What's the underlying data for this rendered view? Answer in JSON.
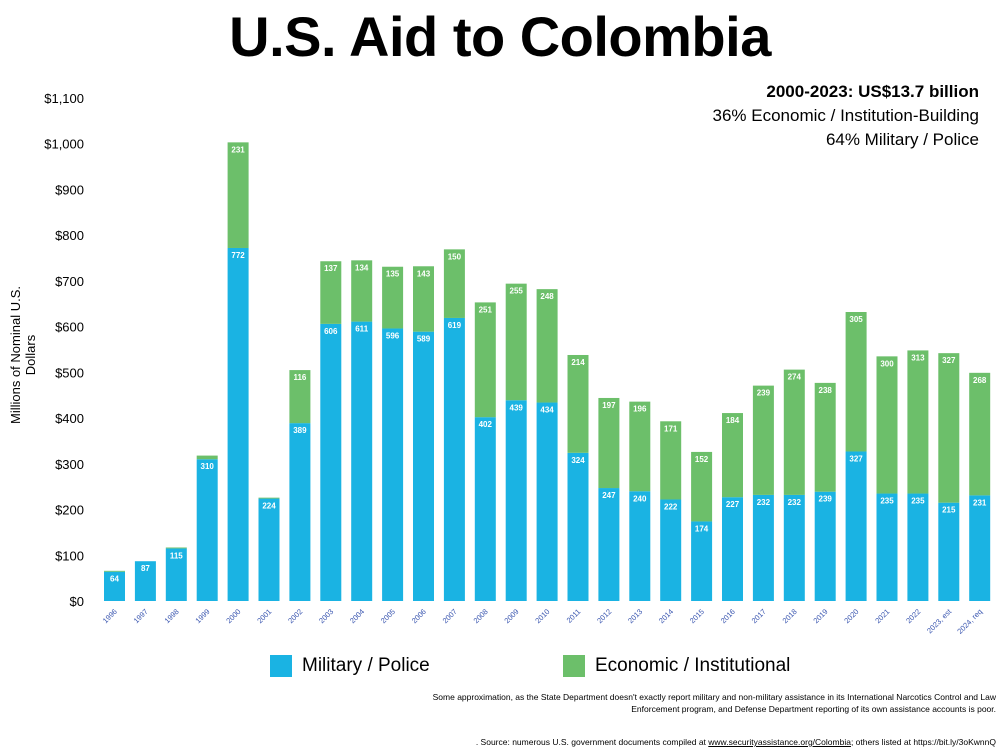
{
  "title": "U.S. Aid to Colombia",
  "summary": {
    "headline": "2000-2023: US$13.7 billion",
    "line1": "36% Economic / Institution-Building",
    "line2": "64% Military / Police"
  },
  "legend": {
    "military": "Military / Police",
    "economic": "Economic / Institutional"
  },
  "note": "Some approximation, as the State Department doesn't exactly report military and non-military assistance in its International Narcotics Control and Law Enforcement program, and Defense Department reporting of its own assistance accounts is poor.",
  "source": {
    "prefix": ". Source: numerous U.S. government documents compiled at ",
    "link": "www.securityassistance.org/Colombia",
    "suffix": "; others listed at https://bit.ly/3oKwnnQ"
  },
  "colors": {
    "military": "#1ab3e3",
    "economic": "#6cbf6a"
  },
  "chart_data": {
    "type": "bar",
    "stacked": true,
    "ylabel": "Millions of Nominal U.S. Dollars",
    "ylim": [
      0,
      1100
    ],
    "yticks": [
      "$0",
      "$100",
      "$200",
      "$300",
      "$400",
      "$500",
      "$600",
      "$700",
      "$800",
      "$900",
      "$1,000",
      "$1,100"
    ],
    "ytick_values": [
      0,
      100,
      200,
      300,
      400,
      500,
      600,
      700,
      800,
      900,
      1000,
      1100
    ],
    "categories": [
      "1996",
      "1997",
      "1998",
      "1999",
      "2000",
      "2001",
      "2002",
      "2003",
      "2004",
      "2005",
      "2006",
      "2007",
      "2008",
      "2009",
      "2010",
      "2011",
      "2012",
      "2013",
      "2014",
      "2015",
      "2016",
      "2017",
      "2018",
      "2019",
      "2020",
      "2021",
      "2022",
      "2023, est",
      "2024, req"
    ],
    "series": [
      {
        "name": "Military / Police",
        "values": [
          64,
          87,
          115,
          310,
          772,
          224,
          389,
          606,
          611,
          596,
          589,
          619,
          402,
          439,
          434,
          324,
          247,
          240,
          222,
          174,
          227,
          232,
          232,
          239,
          327,
          235,
          235,
          215,
          231
        ],
        "labels": [
          "64",
          "87",
          "115",
          "310",
          "772",
          "224",
          "389",
          "606",
          "611",
          "596",
          "589",
          "619",
          "402",
          "439",
          "434",
          "324",
          "247",
          "240",
          "222",
          "174",
          "227",
          "232",
          "232",
          "239",
          "327",
          "235",
          "235",
          "215",
          "231"
        ]
      },
      {
        "name": "Economic / Institutional",
        "values": [
          2,
          0,
          2,
          8,
          231,
          2,
          116,
          137,
          134,
          135,
          143,
          150,
          251,
          255,
          248,
          214,
          197,
          196,
          171,
          152,
          184,
          239,
          274,
          238,
          305,
          300,
          313,
          327,
          268
        ],
        "labels": [
          "",
          "",
          "",
          "",
          "231",
          "",
          "116",
          "137",
          "134",
          "135",
          "143",
          "150",
          "251",
          "255",
          "248",
          "214",
          "197",
          "196",
          "171",
          "152",
          "184",
          "239",
          "274",
          "238",
          "305",
          "300",
          "313",
          "327",
          "268"
        ]
      }
    ],
    "legend_position": "bottom",
    "grid": false
  }
}
